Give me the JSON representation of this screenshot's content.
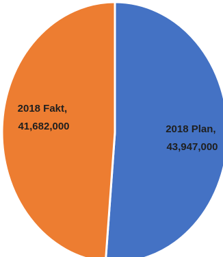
{
  "chart_data": {
    "type": "pie",
    "title": "",
    "slices": [
      {
        "label": "2018 Plan",
        "value": 43947000,
        "value_text": "43,947,000",
        "color": "#4472c4"
      },
      {
        "label": "2018 Fakt",
        "value": 41682000,
        "value_text": "41,682,000",
        "color": "#ed7d31"
      }
    ],
    "start": "12 o'clock",
    "direction": "clockwise",
    "legend": "none",
    "data_labels": "inside slices"
  },
  "labels": {
    "plan_line1": "2018 Plan,",
    "plan_line2": "43,947,000",
    "fakt_line1": "2018 Fakt,",
    "fakt_line2": "41,682,000"
  }
}
